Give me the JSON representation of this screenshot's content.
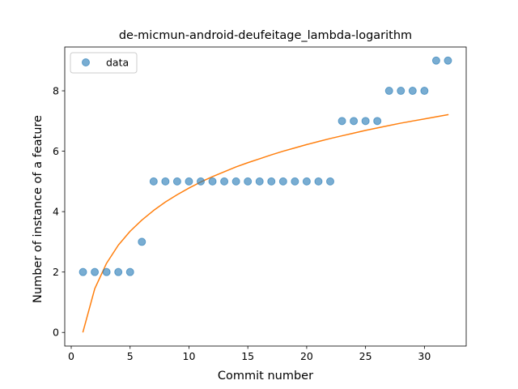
{
  "chart_data": {
    "type": "scatter",
    "title": "de-micmun-android-deufeitage_lambda-logarithm",
    "xlabel": "Commit number",
    "ylabel": "Number of instance of a feature",
    "xlim": [
      -0.55,
      33.55
    ],
    "ylim": [
      -0.45,
      9.45
    ],
    "xticks": [
      0,
      5,
      10,
      15,
      20,
      25,
      30
    ],
    "yticks": [
      0,
      2,
      4,
      6,
      8
    ],
    "grid": false,
    "legend": {
      "placement": "top-left",
      "entries": [
        "data"
      ]
    },
    "series": [
      {
        "name": "data",
        "kind": "scatter",
        "color": "#1f77b4",
        "x": [
          1,
          2,
          3,
          4,
          5,
          6,
          7,
          8,
          9,
          10,
          11,
          12,
          13,
          14,
          15,
          16,
          17,
          18,
          19,
          20,
          21,
          22,
          23,
          24,
          25,
          26,
          27,
          28,
          29,
          30,
          31,
          32
        ],
        "y": [
          2,
          2,
          2,
          2,
          2,
          3,
          5,
          5,
          5,
          5,
          5,
          5,
          5,
          5,
          5,
          5,
          5,
          5,
          5,
          5,
          5,
          5,
          7,
          7,
          7,
          7,
          8,
          8,
          8,
          8,
          9,
          9
        ]
      },
      {
        "kind": "line",
        "color": "#ff7f0e",
        "x": [
          1,
          2,
          3,
          4,
          5,
          6,
          7,
          8,
          9,
          10,
          11,
          12,
          13,
          14,
          15,
          16,
          17,
          18,
          19,
          20,
          21,
          22,
          23,
          24,
          25,
          26,
          27,
          28,
          29,
          30,
          31,
          32
        ],
        "y": [
          0.02,
          1.45,
          2.29,
          2.89,
          3.35,
          3.72,
          4.04,
          4.32,
          4.56,
          4.78,
          4.98,
          5.16,
          5.32,
          5.48,
          5.62,
          5.75,
          5.88,
          6.0,
          6.11,
          6.22,
          6.32,
          6.42,
          6.51,
          6.6,
          6.69,
          6.77,
          6.85,
          6.93,
          7.0,
          7.07,
          7.14,
          7.21
        ]
      }
    ]
  }
}
